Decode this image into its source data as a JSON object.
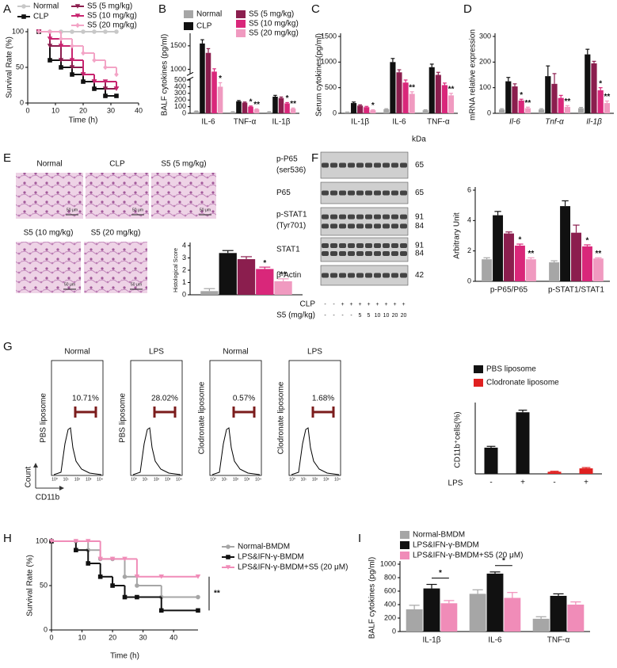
{
  "chart_data": [
    {
      "panel": "A",
      "type": "line",
      "step": true,
      "ylabel": "Survival Rate (%)",
      "xlabel": "Time (h)",
      "x": [
        4,
        8,
        12,
        16,
        20,
        24,
        28,
        32
      ],
      "xlim": [
        0,
        40
      ],
      "xticks": [
        0,
        10,
        20,
        30,
        40
      ],
      "ylim": [
        0,
        100
      ],
      "yticks": [
        0,
        50,
        100
      ],
      "series": [
        {
          "name": "Normal",
          "color": "#c8c8c8",
          "marker": "circle",
          "values": [
            100,
            100,
            100,
            100,
            100,
            100,
            100,
            100
          ]
        },
        {
          "name": "CLP",
          "color": "#111111",
          "marker": "square",
          "values": [
            100,
            60,
            50,
            40,
            30,
            20,
            10,
            10
          ]
        },
        {
          "name": "S5 (5 mg/kg)",
          "color": "#8b1e4e",
          "marker": "triangle",
          "values": [
            100,
            80,
            60,
            50,
            40,
            30,
            20,
            20
          ]
        },
        {
          "name": "S5 (10 mg/kg)",
          "color": "#c8246f",
          "marker": "triangle",
          "values": [
            100,
            90,
            80,
            60,
            40,
            30,
            30,
            20
          ]
        },
        {
          "name": "S5 (20 mg/kg)",
          "color": "#f3a4c6",
          "marker": "diamond",
          "values": [
            100,
            100,
            90,
            80,
            70,
            60,
            50,
            40
          ]
        }
      ]
    },
    {
      "panel": "B",
      "type": "bar",
      "ylabel": "BALF cytokines (pg/ml)",
      "categories": [
        "IL-6",
        "TNF-α",
        "IL-1β"
      ],
      "ylim": [
        0,
        1700
      ],
      "axis_break": [
        520,
        900
      ],
      "yticks": [
        0,
        100,
        200,
        300,
        400,
        500,
        1000,
        1500
      ],
      "series": [
        {
          "name": "Normal",
          "color": "#a6a6a6",
          "values": [
            30,
            20,
            20
          ],
          "errors": [
            5,
            4,
            4
          ]
        },
        {
          "name": "CLP",
          "color": "#111111",
          "values": [
            1550,
            180,
            250
          ],
          "errors": [
            80,
            12,
            20
          ]
        },
        {
          "name": "S5 (5 mg/kg)",
          "color": "#8b1e4e",
          "values": [
            1350,
            160,
            230
          ],
          "errors": [
            90,
            10,
            15
          ]
        },
        {
          "name": "S5 (10 mg/kg)",
          "color": "#d9277a",
          "values": [
            950,
            100,
            150
          ],
          "errors": [
            60,
            10,
            12
          ],
          "significance": [
            null,
            "*",
            "*"
          ]
        },
        {
          "name": "S5 (20 mg/kg)",
          "color": "#f09ac0",
          "values": [
            400,
            60,
            70
          ],
          "errors": [
            60,
            8,
            10
          ],
          "significance": [
            "*",
            "**",
            "**"
          ]
        }
      ]
    },
    {
      "panel": "C",
      "type": "bar",
      "ylabel": "Serum cytokines(pg/ml)",
      "categories": [
        "IL-1β",
        "IL-6",
        "TNF-α"
      ],
      "ylim": [
        0,
        1500
      ],
      "yticks": [
        0,
        500,
        1000,
        1500
      ],
      "series": [
        {
          "color": "#a6a6a6",
          "values": [
            20,
            80,
            60
          ],
          "errors": [
            5,
            10,
            10
          ]
        },
        {
          "color": "#111111",
          "values": [
            200,
            1000,
            900
          ],
          "errors": [
            20,
            70,
            60
          ]
        },
        {
          "color": "#8b1e4e",
          "values": [
            150,
            800,
            750
          ],
          "errors": [
            15,
            50,
            50
          ]
        },
        {
          "color": "#d9277a",
          "values": [
            120,
            600,
            550
          ],
          "errors": [
            15,
            50,
            40
          ]
        },
        {
          "color": "#f09ac0",
          "values": [
            60,
            380,
            350
          ],
          "errors": [
            10,
            40,
            40
          ],
          "significance": [
            "*",
            "**",
            "**"
          ]
        }
      ]
    },
    {
      "panel": "D",
      "type": "bar",
      "ylabel": "mRNA relative expression",
      "categories": [
        "Il-6",
        "Tnf-α",
        "Il-1β"
      ],
      "category_style": "italic",
      "ylim": [
        0,
        300
      ],
      "yticks": [
        0,
        100,
        200,
        300
      ],
      "series": [
        {
          "color": "#a6a6a6",
          "values": [
            15,
            15,
            20
          ],
          "errors": [
            3,
            3,
            3
          ]
        },
        {
          "color": "#111111",
          "values": [
            125,
            145,
            230
          ],
          "errors": [
            15,
            40,
            20
          ]
        },
        {
          "color": "#8b1e4e",
          "values": [
            105,
            115,
            195
          ],
          "errors": [
            10,
            40,
            8
          ]
        },
        {
          "color": "#d9277a",
          "values": [
            50,
            60,
            90
          ],
          "errors": [
            5,
            10,
            10
          ],
          "significance": [
            "*",
            null,
            "*"
          ]
        },
        {
          "color": "#f09ac0",
          "values": [
            20,
            25,
            40
          ],
          "errors": [
            4,
            5,
            8
          ],
          "significance": [
            "**",
            "**",
            "**"
          ]
        }
      ]
    },
    {
      "panel": "E",
      "type": "bar",
      "ylabel": "Histological Score",
      "categories": [
        null
      ],
      "ylim": [
        0,
        4
      ],
      "yticks": [
        0,
        1,
        2,
        3,
        4
      ],
      "series": [
        {
          "color": "#a6a6a6",
          "values": [
            0.3
          ],
          "errors": [
            0.2
          ]
        },
        {
          "color": "#111111",
          "values": [
            3.4
          ],
          "errors": [
            0.2
          ]
        },
        {
          "color": "#8b1e4e",
          "values": [
            2.9
          ],
          "errors": [
            0.2
          ]
        },
        {
          "color": "#d9277a",
          "values": [
            2.1
          ],
          "errors": [
            0.15
          ],
          "significance": [
            "*"
          ]
        },
        {
          "color": "#f09ac0",
          "values": [
            1.1
          ],
          "errors": [
            0.2
          ],
          "significance": [
            "**"
          ]
        }
      ]
    },
    {
      "panel": "F",
      "type": "bar",
      "ylabel": "Arbitrary Unit",
      "categories": [
        "p-P65/P65",
        "p-STAT1/STAT1"
      ],
      "ylim": [
        0,
        6
      ],
      "yticks": [
        0,
        2,
        4,
        6
      ],
      "series": [
        {
          "color": "#a6a6a6",
          "values": [
            1.45,
            1.25
          ],
          "errors": [
            0.1,
            0.1
          ]
        },
        {
          "color": "#111111",
          "values": [
            4.35,
            4.95
          ],
          "errors": [
            0.25,
            0.35
          ]
        },
        {
          "color": "#8b1e4e",
          "values": [
            3.15,
            3.2
          ],
          "errors": [
            0.1,
            0.5
          ]
        },
        {
          "color": "#d9277a",
          "values": [
            2.35,
            2.3
          ],
          "errors": [
            0.1,
            0.1
          ],
          "significance": [
            "*",
            "*"
          ]
        },
        {
          "color": "#f09ac0",
          "values": [
            1.45,
            1.5
          ],
          "errors": [
            0.1,
            0.05
          ],
          "significance": [
            "**",
            "**"
          ]
        }
      ]
    },
    {
      "panel": "G",
      "type": "bar",
      "ylabel": "CD11b⁺cells(%)",
      "xlabel": "LPS",
      "categories": [
        "-",
        "+",
        "-",
        "+"
      ],
      "ylim": [
        0,
        26
      ],
      "series": [
        {
          "name": "PBS liposome",
          "color": "#111111",
          "values": [
            10,
            23.5,
            null,
            null
          ],
          "errors": [
            0.5,
            0.8,
            null,
            null
          ]
        },
        {
          "name": "Clodronate liposome",
          "color": "#e02020",
          "values": [
            null,
            null,
            0.8,
            2.1
          ],
          "errors": [
            null,
            null,
            0.2,
            0.3
          ]
        }
      ]
    },
    {
      "panel": "H",
      "type": "line",
      "step": true,
      "ylabel": "Survival Rate (%)",
      "xlabel": "Time (h)",
      "annotation": "**",
      "x": [
        0,
        8,
        12,
        16,
        20,
        24,
        28,
        36,
        48
      ],
      "xlim": [
        0,
        48
      ],
      "xticks": [
        0,
        10,
        20,
        30,
        40
      ],
      "ylim": [
        0,
        100
      ],
      "yticks": [
        0,
        50,
        100
      ],
      "series": [
        {
          "name": "Normal-BMDM",
          "color": "#a6a6a6",
          "marker": "circle",
          "values": [
            100,
            100,
            90,
            80,
            80,
            60,
            50,
            37,
            37
          ]
        },
        {
          "name": "LPS&IFN-γ-BMDM",
          "color": "#111111",
          "marker": "square",
          "values": [
            100,
            90,
            75,
            60,
            50,
            37,
            37,
            22,
            22
          ]
        },
        {
          "name": "LPS&IFN-γ-BMDM+S5 (20 μM)",
          "color": "#f08cb8",
          "marker": "triangle",
          "values": [
            100,
            100,
            100,
            80,
            80,
            80,
            60,
            60,
            60
          ]
        }
      ]
    },
    {
      "panel": "I",
      "type": "bar",
      "ylabel": "BALF cytokines (pg/ml)",
      "categories": [
        "IL-1β",
        "IL-6",
        "TNF-α"
      ],
      "significance_style": "bracket",
      "ylim": [
        0,
        1000
      ],
      "yticks": [
        0,
        200,
        400,
        600,
        800,
        1000
      ],
      "series": [
        {
          "name": "Normal-BMDM",
          "color": "#a6a6a6",
          "values": [
            330,
            560,
            190
          ],
          "errors": [
            60,
            60,
            30
          ]
        },
        {
          "name": "LPS&IFN-γ-BMDM",
          "color": "#111111",
          "values": [
            640,
            860,
            530
          ],
          "errors": [
            60,
            25,
            30
          ]
        },
        {
          "name": "LPS&IFN-γ-BMDM+S5 (20 μM)",
          "color": "#f08cb8",
          "values": [
            420,
            500,
            400
          ],
          "errors": [
            40,
            80,
            40
          ],
          "significance": [
            "*",
            "*",
            null
          ]
        }
      ]
    }
  ],
  "histology": {
    "labels": [
      "Normal",
      "CLP",
      "S5 (5 mg/kg)",
      "S5 (10 mg/kg)",
      "S5 (20 mg/kg)"
    ],
    "scale_bar": "50 μm"
  },
  "western_blot": {
    "unit": "kDa",
    "rows": [
      {
        "label": "p-P65",
        "sublabel": "(ser536)",
        "kda": [
          "65"
        ]
      },
      {
        "label": "P65",
        "kda": [
          "65"
        ]
      },
      {
        "label": "p-STAT1",
        "sublabel": "(Tyr701)",
        "kda": [
          "91",
          "84"
        ]
      },
      {
        "label": "STAT1",
        "kda": [
          "91",
          "84"
        ]
      },
      {
        "label": "β-Actin",
        "kda": [
          "42"
        ]
      }
    ],
    "treatments": [
      {
        "label": "CLP",
        "lanes": [
          "-",
          "-",
          "+",
          "+",
          "+",
          "+",
          "+",
          "+",
          "+",
          "+"
        ]
      },
      {
        "label": "S5 (mg/kg)",
        "lanes": [
          "-",
          "-",
          "-",
          "-",
          "5",
          "5",
          "10",
          "10",
          "20",
          "20"
        ]
      }
    ]
  },
  "flow": {
    "ylabel": "Count",
    "xlabel": "CD11b",
    "xticks": [
      "10⁰",
      "10¹",
      "10²",
      "10³",
      "10⁴"
    ],
    "panels": [
      {
        "title": "Normal",
        "ylabel": "PBS liposome",
        "percent": "10.71%"
      },
      {
        "title": "LPS",
        "ylabel": "PBS liposome",
        "percent": "28.02%"
      },
      {
        "title": "Normal",
        "ylabel": "Clodronate liposome",
        "percent": "0.57%"
      },
      {
        "title": "LPS",
        "ylabel": "Clodronate liposome",
        "percent": "1.68%"
      }
    ]
  }
}
